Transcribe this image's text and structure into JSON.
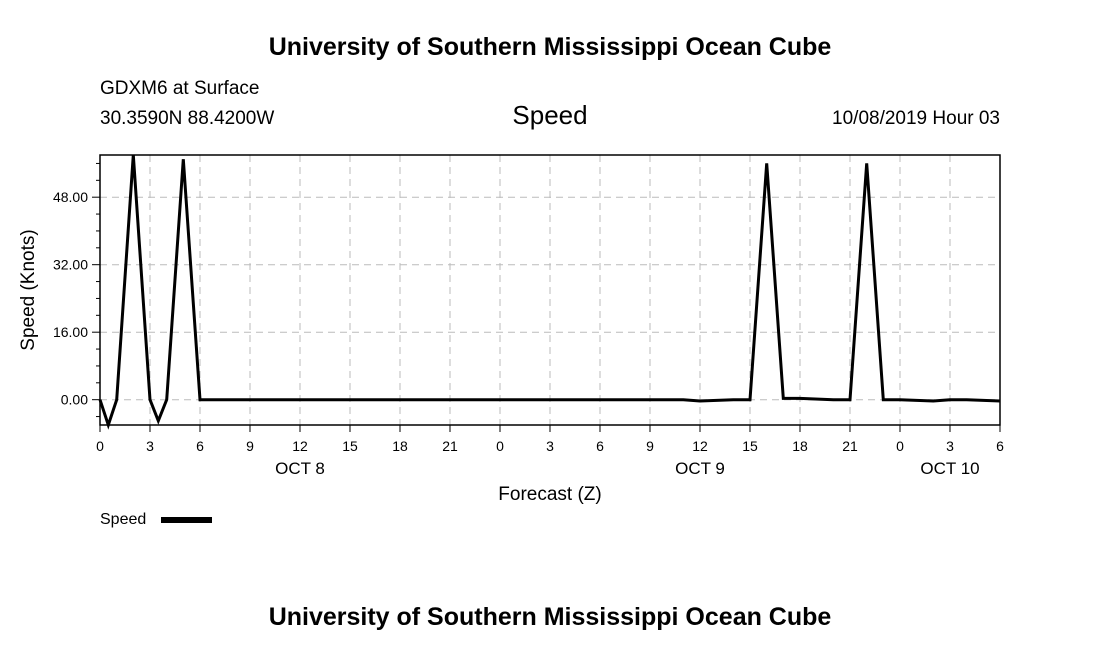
{
  "header": {
    "top_title": "University of Southern Mississippi Ocean Cube",
    "station": "GDXM6 at Surface",
    "location": "30.3590N 88.4200W",
    "datetime": "10/08/2019 Hour 03",
    "bottom_title": "University of Southern Mississippi Ocean Cube"
  },
  "chart_data": {
    "type": "line",
    "title": "Speed",
    "xlabel": "Forecast (Z)",
    "ylabel": "Speed (Knots)",
    "xlim": [
      0,
      54
    ],
    "ylim": [
      -6,
      58
    ],
    "grid": true,
    "yticks": [
      "0.00",
      "16.00",
      "32.00",
      "48.00"
    ],
    "ytick_values": [
      0,
      16,
      32,
      48
    ],
    "xticks": [
      "0",
      "3",
      "6",
      "9",
      "12",
      "15",
      "18",
      "21",
      "0",
      "3",
      "6",
      "9",
      "12",
      "15",
      "18",
      "21",
      "0",
      "3",
      "6"
    ],
    "day_labels": [
      {
        "label": "OCT 8",
        "at": 12
      },
      {
        "label": "OCT 9",
        "at": 36
      },
      {
        "label": "OCT 10",
        "at": 51
      }
    ],
    "legend": "bottom-left",
    "series": [
      {
        "name": "Speed",
        "color": "#000000",
        "x": [
          0,
          0.5,
          1,
          2,
          3,
          3.5,
          4,
          5,
          6,
          9,
          12,
          15,
          18,
          21,
          24,
          27,
          30,
          33,
          35,
          36,
          38,
          39,
          40,
          41,
          42,
          44,
          45,
          46,
          47,
          48,
          50,
          51,
          52,
          54
        ],
        "y": [
          0,
          -6,
          0,
          58,
          0,
          -5,
          0,
          57,
          0,
          0,
          0,
          0,
          0,
          0,
          0,
          0,
          0,
          0,
          0,
          -0.3,
          0,
          0,
          56,
          0.3,
          0.3,
          0,
          0,
          56,
          0,
          0,
          -0.3,
          0,
          0,
          -0.3
        ]
      }
    ]
  }
}
